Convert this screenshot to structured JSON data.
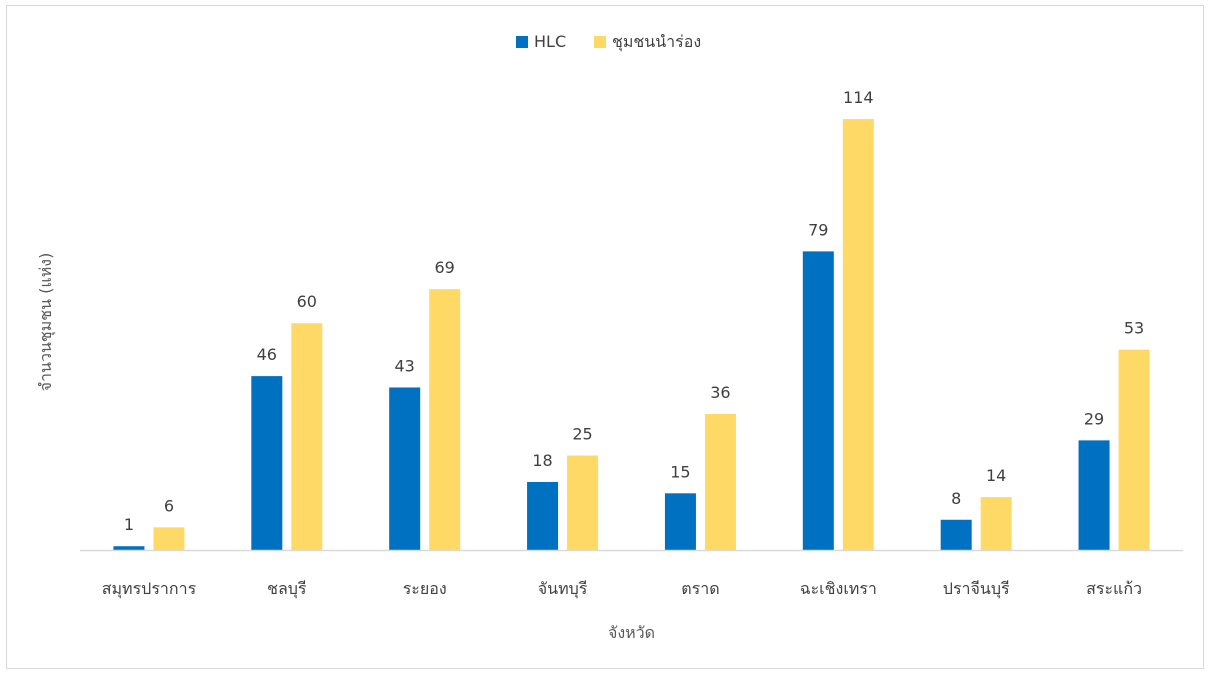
{
  "chart_data": {
    "type": "bar",
    "categories": [
      "สมุทรปราการ",
      "ชลบุรี",
      "ระยอง",
      "จันทบุรี",
      "ตราด",
      "ฉะเชิงเทรา",
      "ปราจีนบุรี",
      "สระแก้ว"
    ],
    "series": [
      {
        "name": "HLC",
        "color": "#0070c0",
        "values": [
          1,
          46,
          43,
          18,
          15,
          79,
          8,
          29
        ]
      },
      {
        "name": "ชุมชนนำร่อง",
        "color": "#ffd966",
        "values": [
          6,
          60,
          69,
          25,
          36,
          114,
          14,
          53
        ]
      }
    ],
    "xlabel": "จังหวัด",
    "ylabel": "จำนวนชุมชน (แห่ง)",
    "ylim": [
      0,
      120
    ],
    "grid": false,
    "legend_position": "top-center",
    "axis_color": "#d9d9d9",
    "text_color": "#404040"
  }
}
